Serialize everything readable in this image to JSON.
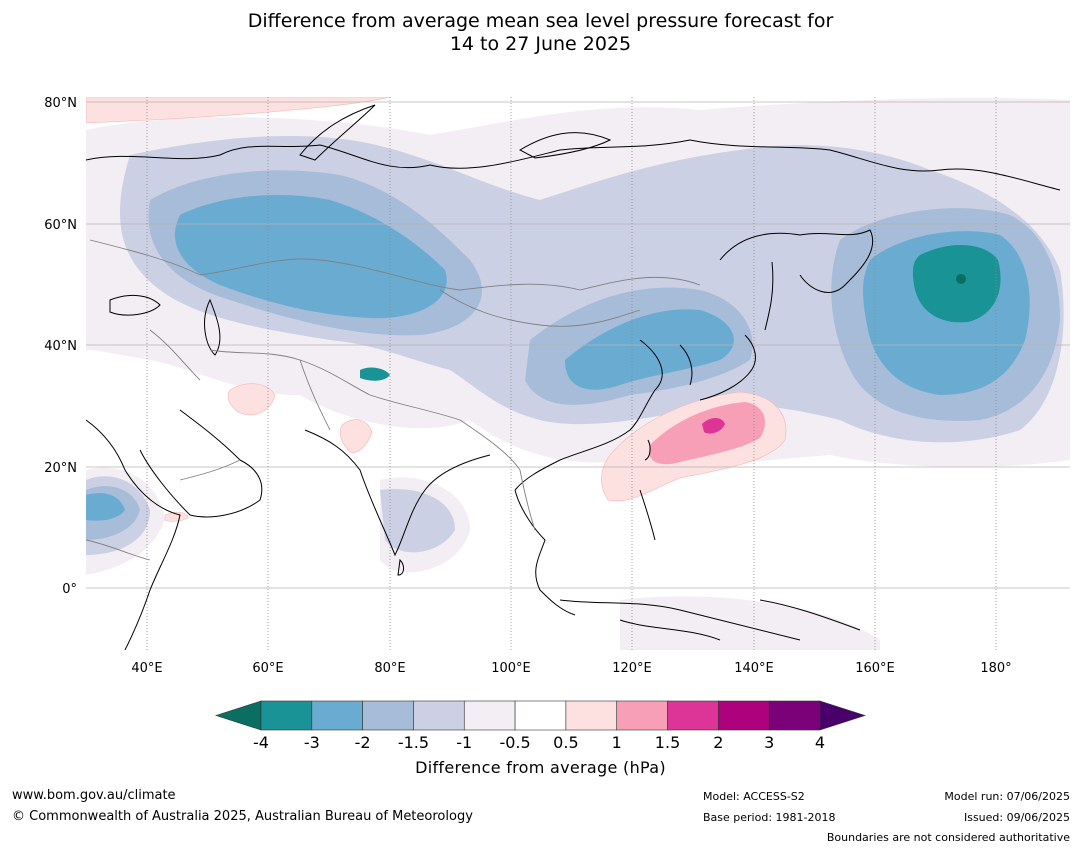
{
  "title": {
    "line1": "Difference from average mean sea level pressure forecast for",
    "line2": "14 to 27 June 2025"
  },
  "map": {
    "lat_labels": [
      "80°N",
      "60°N",
      "40°N",
      "20°N",
      "0°"
    ],
    "lon_labels": [
      "40°E",
      "60°E",
      "80°E",
      "100°E",
      "120°E",
      "140°E",
      "160°E",
      "180°"
    ],
    "region": "Asia and western Pacific",
    "lon_range": [
      30,
      192
    ],
    "lat_range": [
      -10,
      81
    ]
  },
  "colorbar": {
    "title": "Difference from average (hPa)",
    "ticks": [
      "-4",
      "-3",
      "-2",
      "-1.5",
      "-1",
      "-0.5",
      "0.5",
      "1",
      "1.5",
      "2",
      "3",
      "4"
    ],
    "colors": [
      "#0b6e62",
      "#1a9396",
      "#6aabd2",
      "#a6bcd8",
      "#ccd0e4",
      "#f3edf4",
      "#ffffff",
      "#fde0e0",
      "#f89fb8",
      "#dd3497",
      "#ae017e",
      "#7a0177",
      "#49006a"
    ]
  },
  "footer": {
    "website": "www.bom.gov.au/climate",
    "copyright": "© Commonwealth of Australia 2025, Australian Bureau of Meteorology",
    "model": "Model: ACCESS-S2",
    "base_period": "Base period: 1981-2018",
    "model_run": "Model run: 07/06/2025",
    "issued": "Issued: 09/06/2025",
    "disclaimer": "Boundaries are not considered authoritative"
  }
}
